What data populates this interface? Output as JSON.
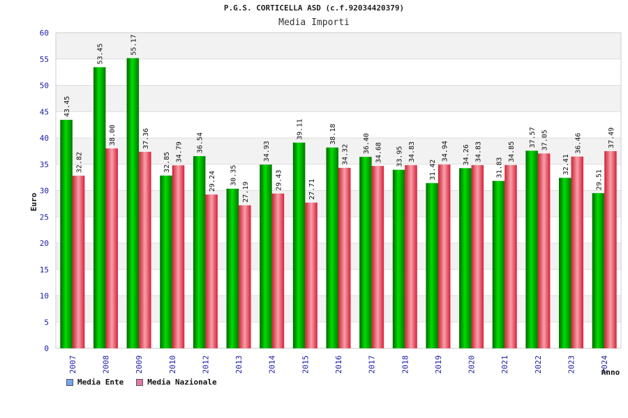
{
  "chart_data": {
    "type": "bar",
    "title": "P.G.S. CORTICELLA ASD (c.f.92034420379)",
    "subtitle": "Media Importi",
    "ylabel": "Euro",
    "xlabel": "Anno",
    "ylim": [
      0,
      60
    ],
    "yticks": [
      0,
      5,
      10,
      15,
      20,
      25,
      30,
      35,
      40,
      45,
      50,
      55,
      60
    ],
    "grid": true,
    "legend_position": "bottom-left",
    "categories": [
      "2007",
      "2008",
      "2009",
      "2010",
      "2012",
      "2013",
      "2014",
      "2015",
      "2016",
      "2017",
      "2018",
      "2019",
      "2020",
      "2021",
      "2022",
      "2023",
      "2024"
    ],
    "series": [
      {
        "name": "Media Ente",
        "color": "#00aa00",
        "legend_color": "#6fa8f0",
        "values": [
          43.45,
          53.45,
          55.17,
          32.85,
          36.54,
          30.35,
          34.93,
          39.11,
          38.18,
          36.4,
          33.95,
          31.42,
          34.26,
          31.83,
          37.57,
          32.41,
          29.51
        ],
        "labels": [
          "43.45",
          "53.45",
          "55.17",
          "32.85",
          "36.54",
          "30.35",
          "34.93",
          "39.11",
          "38.18",
          "36.40",
          "33.95",
          "31.42",
          "34.26",
          "31.83",
          "37.57",
          "32.41",
          "29.51"
        ]
      },
      {
        "name": "Media Nazionale",
        "color": "#e0283a",
        "legend_color": "#e07aa8",
        "values": [
          32.82,
          38.0,
          37.36,
          34.79,
          29.24,
          27.19,
          29.43,
          27.71,
          34.32,
          34.68,
          34.83,
          34.94,
          34.83,
          34.85,
          37.05,
          36.46,
          37.49
        ],
        "labels": [
          "32.82",
          "38.00",
          "37.36",
          "34.79",
          "29.24",
          "27.19",
          "29.43",
          "27.71",
          "34.32",
          "34.68",
          "34.83",
          "34.94",
          "34.83",
          "34.85",
          "37.05",
          "36.46",
          "37.49"
        ]
      }
    ]
  }
}
